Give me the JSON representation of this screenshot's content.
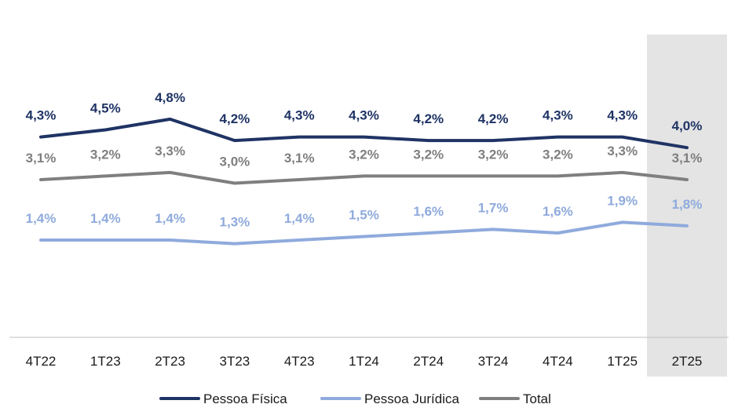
{
  "chart_data": {
    "type": "line",
    "categories": [
      "4T22",
      "1T23",
      "2T23",
      "3T23",
      "4T23",
      "1T24",
      "2T24",
      "3T24",
      "4T24",
      "1T25",
      "2T25"
    ],
    "highlight_category": "2T25",
    "series": [
      {
        "name": "Pessoa Física",
        "color": "#1f3364",
        "values": [
          4.3,
          4.5,
          4.8,
          4.2,
          4.3,
          4.3,
          4.2,
          4.2,
          4.3,
          4.3,
          4.0
        ],
        "labels": [
          "4,3%",
          "4,5%",
          "4,8%",
          "4,2%",
          "4,3%",
          "4,3%",
          "4,2%",
          "4,2%",
          "4,3%",
          "4,3%",
          "4,0%"
        ]
      },
      {
        "name": "Pessoa Jurídica",
        "color": "#8faadc",
        "values": [
          1.4,
          1.4,
          1.4,
          1.3,
          1.4,
          1.5,
          1.6,
          1.7,
          1.6,
          1.9,
          1.8
        ],
        "labels": [
          "1,4%",
          "1,4%",
          "1,4%",
          "1,3%",
          "1,4%",
          "1,5%",
          "1,6%",
          "1,7%",
          "1,6%",
          "1,9%",
          "1,8%"
        ]
      },
      {
        "name": "Total",
        "color": "#7f7f7f",
        "values": [
          3.1,
          3.2,
          3.3,
          3.0,
          3.1,
          3.2,
          3.2,
          3.2,
          3.2,
          3.3,
          3.1
        ],
        "labels": [
          "3,1%",
          "3,2%",
          "3,3%",
          "3,0%",
          "3,1%",
          "3,2%",
          "3,2%",
          "3,2%",
          "3,2%",
          "3,3%",
          "3,1%"
        ]
      }
    ],
    "legend_order": [
      "Pessoa Física",
      "Pessoa Jurídica",
      "Total"
    ],
    "legend_position": "bottom",
    "grid": false,
    "title": "",
    "xlabel": "",
    "ylabel": ""
  }
}
